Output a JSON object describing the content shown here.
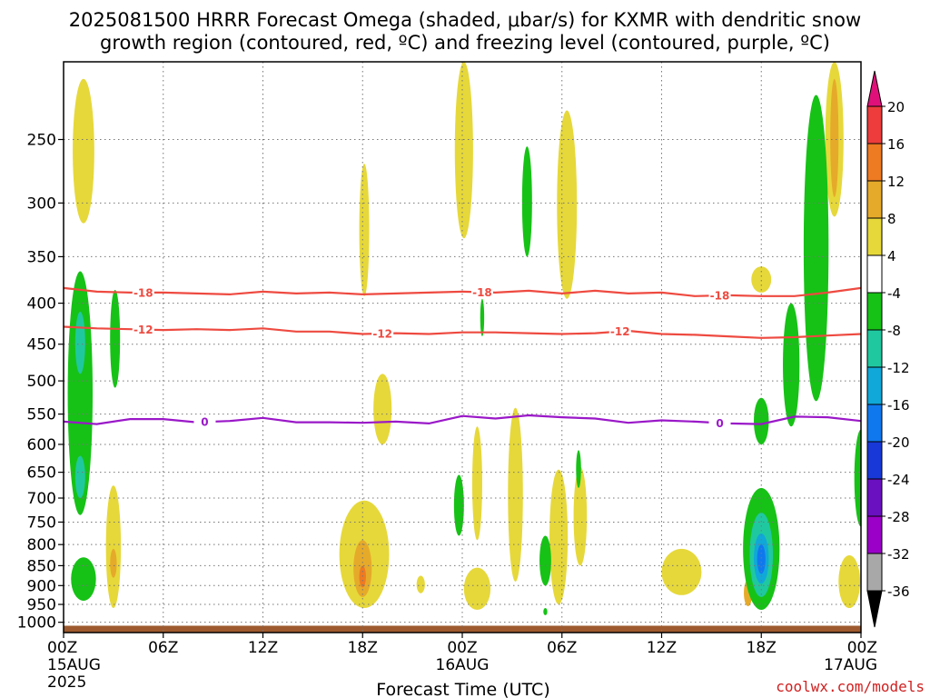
{
  "title": {
    "line1": "2025081500 HRRR Forecast Omega (shaded, μbar/s) for KXMR with dendritic snow",
    "line2": "growth region (contoured, red, ºC) and freezing level (contoured, purple, ºC)"
  },
  "credit": "coolwx.com/models",
  "chart_data": {
    "type": "area",
    "title": "2025081500 HRRR Forecast Omega (shaded, μbar/s) for KXMR with dendritic snow growth region (contoured, red, ºC) and freezing level (contoured, purple, ºC)",
    "xlabel": "Forecast Time (UTC)",
    "ylabel": "",
    "xlim": [
      0,
      48
    ],
    "ylim": [
      1030,
      200
    ],
    "y_axis": "pressure (hPa), decreasing upward",
    "x_ticks": [
      {
        "hour": 0,
        "label": "00Z",
        "sub1": "15AUG",
        "sub2": "2025"
      },
      {
        "hour": 6,
        "label": "06Z",
        "sub1": "",
        "sub2": ""
      },
      {
        "hour": 12,
        "label": "12Z",
        "sub1": "",
        "sub2": ""
      },
      {
        "hour": 18,
        "label": "18Z",
        "sub1": "",
        "sub2": ""
      },
      {
        "hour": 24,
        "label": "00Z",
        "sub1": "16AUG",
        "sub2": ""
      },
      {
        "hour": 30,
        "label": "06Z",
        "sub1": "",
        "sub2": ""
      },
      {
        "hour": 36,
        "label": "12Z",
        "sub1": "",
        "sub2": ""
      },
      {
        "hour": 42,
        "label": "18Z",
        "sub1": "",
        "sub2": ""
      },
      {
        "hour": 48,
        "label": "00Z",
        "sub1": "17AUG",
        "sub2": ""
      }
    ],
    "y_ticks": [
      250,
      300,
      350,
      400,
      450,
      500,
      550,
      600,
      650,
      700,
      750,
      800,
      850,
      900,
      950,
      1000
    ],
    "grid": true,
    "colorbar": {
      "labels": [
        "20",
        "16",
        "12",
        "8",
        "4",
        "-4",
        "-8",
        "-12",
        "-16",
        "-20",
        "-24",
        "-28",
        "-32",
        "-36"
      ],
      "colors": [
        "#e0107a",
        "#ee3c3c",
        "#ee7a22",
        "#e6aa2a",
        "#e6d83a",
        "#ffffff",
        "#16c216",
        "#20c8a0",
        "#10a8d8",
        "#1078ee",
        "#1838d8",
        "#6a10c0",
        "#9a00c8",
        "#a8a8a8",
        "#000000"
      ]
    },
    "contours": [
      {
        "name": "-18",
        "color": "#ee4a40",
        "label": "-18",
        "x": [
          0,
          2,
          4,
          6,
          8,
          10,
          12,
          14,
          16,
          18,
          20,
          22,
          24,
          26,
          28,
          30,
          32,
          34,
          36,
          38,
          40,
          42,
          44,
          46,
          48
        ],
        "y": [
          383,
          387,
          388,
          388,
          389,
          390,
          387,
          389,
          388,
          390,
          389,
          388,
          387,
          388,
          386,
          389,
          386,
          389,
          388,
          392,
          391,
          392,
          392,
          388,
          383
        ]
      },
      {
        "name": "-12",
        "color": "#ee4a40",
        "label": "-12",
        "x": [
          0,
          2,
          4,
          6,
          8,
          10,
          12,
          14,
          16,
          18,
          20,
          22,
          24,
          26,
          28,
          30,
          32,
          34,
          36,
          38,
          40,
          42,
          44,
          46,
          48
        ],
        "y": [
          428,
          430,
          431,
          432,
          431,
          432,
          430,
          434,
          434,
          437,
          436,
          437,
          435,
          435,
          436,
          437,
          436,
          433,
          437,
          438,
          440,
          442,
          441,
          439,
          437
        ]
      },
      {
        "name": "0",
        "color": "#9a18c8",
        "label": "0",
        "x": [
          0,
          2,
          4,
          6,
          8,
          10,
          12,
          14,
          16,
          18,
          20,
          22,
          24,
          26,
          28,
          30,
          32,
          34,
          36,
          38,
          40,
          42,
          44,
          46,
          48
        ],
        "y": [
          562,
          566,
          558,
          558,
          563,
          561,
          556,
          563,
          563,
          564,
          562,
          565,
          553,
          557,
          552,
          555,
          557,
          564,
          560,
          562,
          565,
          566,
          554,
          555,
          561
        ]
      }
    ],
    "shaded_regions": [
      {
        "class": "4",
        "hour": 1.2,
        "p_top": 210,
        "p_bot": 318,
        "halfwidth_h": 0.65
      },
      {
        "class": "4",
        "hour": 18.1,
        "p_top": 268,
        "p_bot": 392,
        "halfwidth_h": 0.3
      },
      {
        "class": "4",
        "hour": 24.1,
        "p_top": 200,
        "p_bot": 332,
        "halfwidth_h": 0.55
      },
      {
        "class": "4",
        "hour": 30.3,
        "p_top": 230,
        "p_bot": 395,
        "halfwidth_h": 0.6
      },
      {
        "class": "4",
        "hour": 46.4,
        "p_top": 200,
        "p_bot": 312,
        "halfwidth_h": 0.55
      },
      {
        "class": "4",
        "hour": 42.0,
        "p_top": 360,
        "p_bot": 388,
        "halfwidth_h": 0.6
      },
      {
        "class": "4",
        "hour": 19.2,
        "p_top": 490,
        "p_bot": 600,
        "halfwidth_h": 0.55
      },
      {
        "class": "4",
        "hour": 3.0,
        "p_top": 675,
        "p_bot": 960,
        "halfwidth_h": 0.45
      },
      {
        "class": "4",
        "hour": 18.1,
        "p_top": 705,
        "p_bot": 960,
        "halfwidth_h": 1.5
      },
      {
        "class": "4",
        "hour": 24.9,
        "p_top": 570,
        "p_bot": 790,
        "halfwidth_h": 0.3
      },
      {
        "class": "4",
        "hour": 24.9,
        "p_top": 855,
        "p_bot": 965,
        "halfwidth_h": 0.8
      },
      {
        "class": "4",
        "hour": 27.2,
        "p_top": 540,
        "p_bot": 890,
        "halfwidth_h": 0.45
      },
      {
        "class": "4",
        "hour": 29.8,
        "p_top": 645,
        "p_bot": 950,
        "halfwidth_h": 0.55
      },
      {
        "class": "4",
        "hour": 31.1,
        "p_top": 640,
        "p_bot": 850,
        "halfwidth_h": 0.4
      },
      {
        "class": "4",
        "hour": 37.2,
        "p_top": 810,
        "p_bot": 925,
        "halfwidth_h": 1.2
      },
      {
        "class": "4",
        "hour": 47.3,
        "p_top": 825,
        "p_bot": 960,
        "halfwidth_h": 0.65
      },
      {
        "class": "4",
        "hour": 21.5,
        "p_top": 875,
        "p_bot": 920,
        "halfwidth_h": 0.25
      },
      {
        "class": "8",
        "hour": 18.0,
        "p_top": 790,
        "p_bot": 930,
        "halfwidth_h": 0.55
      },
      {
        "class": "8",
        "hour": 3.0,
        "p_top": 810,
        "p_bot": 880,
        "halfwidth_h": 0.2
      },
      {
        "class": "8",
        "hour": 46.4,
        "p_top": 210,
        "p_bot": 295,
        "halfwidth_h": 0.25
      },
      {
        "class": "8",
        "hour": 41.2,
        "p_top": 885,
        "p_bot": 955,
        "halfwidth_h": 0.25
      },
      {
        "class": "12",
        "hour": 18.0,
        "p_top": 850,
        "p_bot": 905,
        "halfwidth_h": 0.2
      },
      {
        "class": "-4",
        "hour": 1.0,
        "p_top": 365,
        "p_bot": 735,
        "halfwidth_h": 0.75
      },
      {
        "class": "-4",
        "hour": 3.1,
        "p_top": 385,
        "p_bot": 510,
        "halfwidth_h": 0.3
      },
      {
        "class": "-4",
        "hour": 1.2,
        "p_top": 830,
        "p_bot": 940,
        "halfwidth_h": 0.75
      },
      {
        "class": "-4",
        "hour": 27.9,
        "p_top": 255,
        "p_bot": 350,
        "halfwidth_h": 0.3
      },
      {
        "class": "-4",
        "hour": 25.2,
        "p_top": 395,
        "p_bot": 440,
        "halfwidth_h": 0.12
      },
      {
        "class": "-4",
        "hour": 45.3,
        "p_top": 220,
        "p_bot": 530,
        "halfwidth_h": 0.75
      },
      {
        "class": "-4",
        "hour": 43.8,
        "p_top": 400,
        "p_bot": 570,
        "halfwidth_h": 0.5
      },
      {
        "class": "-4",
        "hour": 48.0,
        "p_top": 575,
        "p_bot": 760,
        "halfwidth_h": 0.4
      },
      {
        "class": "-4",
        "hour": 42.0,
        "p_top": 525,
        "p_bot": 600,
        "halfwidth_h": 0.45
      },
      {
        "class": "-4",
        "hour": 42.0,
        "p_top": 680,
        "p_bot": 965,
        "halfwidth_h": 1.1
      },
      {
        "class": "-4",
        "hour": 23.8,
        "p_top": 655,
        "p_bot": 780,
        "halfwidth_h": 0.3
      },
      {
        "class": "-4",
        "hour": 29.0,
        "p_top": 780,
        "p_bot": 900,
        "halfwidth_h": 0.35
      },
      {
        "class": "-4",
        "hour": 31.0,
        "p_top": 610,
        "p_bot": 680,
        "halfwidth_h": 0.15
      },
      {
        "class": "-4",
        "hour": 29.0,
        "p_top": 960,
        "p_bot": 980,
        "halfwidth_h": 0.12
      },
      {
        "class": "-8",
        "hour": 1.0,
        "p_top": 410,
        "p_bot": 490,
        "halfwidth_h": 0.3
      },
      {
        "class": "-8",
        "hour": 1.0,
        "p_top": 620,
        "p_bot": 700,
        "halfwidth_h": 0.3
      },
      {
        "class": "-8",
        "hour": 42.0,
        "p_top": 730,
        "p_bot": 930,
        "halfwidth_h": 0.7
      },
      {
        "class": "-12",
        "hour": 42.0,
        "p_top": 775,
        "p_bot": 895,
        "halfwidth_h": 0.45
      },
      {
        "class": "-16",
        "hour": 42.0,
        "p_top": 800,
        "p_bot": 870,
        "halfwidth_h": 0.25
      }
    ],
    "terrain": {
      "p_top": 1010,
      "color": "#9e5a2e"
    }
  }
}
